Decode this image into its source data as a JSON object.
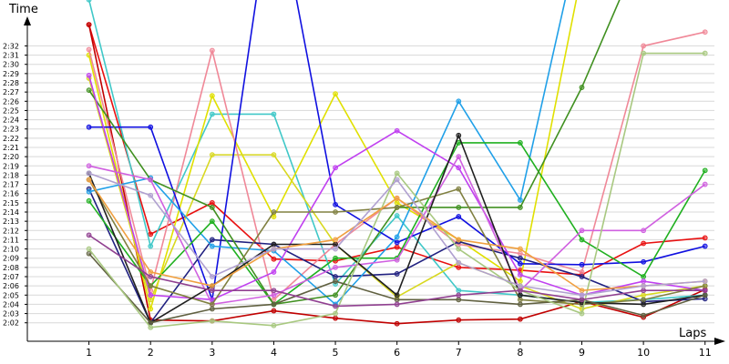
{
  "chart_data": {
    "type": "line",
    "y_label": "Time",
    "x_label": "Laps",
    "x": [
      1,
      2,
      3,
      4,
      5,
      6,
      7,
      8,
      9,
      10,
      11
    ],
    "xlim": [
      0,
      11.3
    ],
    "xticks": [
      1,
      2,
      3,
      4,
      5,
      6,
      7,
      8,
      9,
      10,
      11
    ],
    "ylim": [
      120,
      155
    ],
    "yticks": [
      {
        "value": 122,
        "label": "2:02"
      },
      {
        "value": 123,
        "label": "2:03"
      },
      {
        "value": 124,
        "label": "2:04"
      },
      {
        "value": 125,
        "label": "2:05"
      },
      {
        "value": 126,
        "label": "2:06"
      },
      {
        "value": 127,
        "label": "2:07"
      },
      {
        "value": 128,
        "label": "2:08"
      },
      {
        "value": 129,
        "label": "2:09"
      },
      {
        "value": 130,
        "label": "2:10"
      },
      {
        "value": 131,
        "label": "2:11"
      },
      {
        "value": 132,
        "label": "2:12"
      },
      {
        "value": 133,
        "label": "2:13"
      },
      {
        "value": 134,
        "label": "2:14"
      },
      {
        "value": 135,
        "label": "2:15"
      },
      {
        "value": 136,
        "label": "2:16"
      },
      {
        "value": 137,
        "label": "2:17"
      },
      {
        "value": 138,
        "label": "2:18"
      },
      {
        "value": 139,
        "label": "2:19"
      },
      {
        "value": 140,
        "label": "2:20"
      },
      {
        "value": 141,
        "label": "2:21"
      },
      {
        "value": 142,
        "label": "2:22"
      },
      {
        "value": 143,
        "label": "2:23"
      },
      {
        "value": 144,
        "label": "2:24"
      },
      {
        "value": 145,
        "label": "2:25"
      },
      {
        "value": 146,
        "label": "2:26"
      },
      {
        "value": 147,
        "label": "2:27"
      },
      {
        "value": 148,
        "label": "2:28"
      },
      {
        "value": 149,
        "label": "2:29"
      },
      {
        "value": 150,
        "label": "2:30"
      },
      {
        "value": 151,
        "label": "2:31"
      },
      {
        "value": 152,
        "label": "2:32"
      }
    ],
    "grid": true,
    "series": [
      {
        "color": "#e81010",
        "values": [
          154.3,
          131.6,
          135,
          128.9,
          128.7,
          130.2,
          128,
          127.7,
          127.2,
          130.6,
          131.2
        ]
      },
      {
        "color": "#c00000",
        "values": [
          154.3,
          122.3,
          122.2,
          123.3,
          122.5,
          121.9,
          122.3,
          122.4,
          124.3,
          122.6,
          125.6
        ]
      },
      {
        "color": "#40c8c8",
        "values": [
          157,
          130.3,
          144.6,
          144.6,
          126.2,
          133.6,
          125.5,
          125,
          124.2,
          124.5,
          125
        ]
      },
      {
        "color": "#e0e000",
        "values": [
          151,
          123.5,
          146.6,
          133.5,
          146.8,
          135,
          131,
          126.5,
          160,
          null,
          null
        ]
      },
      {
        "color": "#d8d820",
        "values": [
          148.5,
          124.5,
          140.2,
          140.2,
          130.5,
          124.8,
          128.5,
          126,
          123.5,
          125,
          126
        ]
      },
      {
        "color": "#f08898",
        "values": [
          151.6,
          125.5,
          151.5,
          124.5,
          130.5,
          135.5,
          130.5,
          129.5,
          127.5,
          152,
          153.5
        ]
      },
      {
        "color": "#1010e0",
        "values": [
          143.2,
          143.2,
          124.5,
          170,
          134.8,
          130.7,
          133.5,
          128.4,
          128.3,
          128.6,
          130.3
        ]
      },
      {
        "color": "#202080",
        "values": [
          136.5,
          122,
          131,
          130.5,
          127,
          127.3,
          130.8,
          129,
          127,
          124.3,
          124.6
        ]
      },
      {
        "color": "#20a0e8",
        "values": [
          136.2,
          137.7,
          130.3,
          129.8,
          124,
          131.3,
          146,
          135.3,
          165,
          null,
          null
        ]
      },
      {
        "color": "#20b020",
        "values": [
          135.2,
          126,
          133,
          124,
          129,
          129,
          141.5,
          141.5,
          131,
          127,
          138.5
        ]
      },
      {
        "color": "#409020",
        "values": [
          147.2,
          137.5,
          134.5,
          124,
          125,
          134.5,
          134.5,
          134.5,
          147.5,
          163,
          null
        ]
      },
      {
        "color": "#c040f0",
        "values": [
          148.8,
          125,
          124.5,
          127.5,
          138.8,
          142.8,
          138.8,
          127.2,
          125,
          126.5,
          125.5
        ]
      },
      {
        "color": "#d060e0",
        "values": [
          139,
          137.5,
          124,
          125,
          128,
          128.8,
          140,
          125.5,
          132,
          132,
          137
        ]
      },
      {
        "color": "#808040",
        "values": [
          137.5,
          126,
          124,
          134,
          134,
          134.5,
          136.5,
          124.5,
          124,
          124.5,
          126
        ]
      },
      {
        "color": "#202020",
        "values": [
          138.2,
          122,
          126,
          130.5,
          130.5,
          125,
          142.3,
          125,
          124.2,
          124,
          125
        ]
      },
      {
        "color": "#606040",
        "values": [
          129.5,
          122,
          123.5,
          124,
          126.5,
          124.5,
          124.5,
          124,
          124.5,
          122.8,
          125
        ]
      },
      {
        "color": "#a8c880",
        "values": [
          130,
          121.5,
          122.2,
          121.7,
          123,
          138.2,
          130,
          125.5,
          123,
          151.2,
          151.2
        ]
      },
      {
        "color": "#f0a040",
        "values": [
          137.5,
          127.5,
          126,
          130,
          131,
          135.5,
          131,
          130,
          125.5,
          126,
          126.5
        ]
      },
      {
        "color": "#904090",
        "values": [
          131.5,
          127,
          125.5,
          125.5,
          123.8,
          124,
          125,
          125.5,
          124.5,
          125.5,
          125.5
        ]
      },
      {
        "color": "#b0a0d0",
        "values": [
          138.2,
          135.8,
          127,
          130,
          130,
          137.5,
          128.5,
          126,
          125,
          126,
          126.5
        ]
      }
    ]
  }
}
